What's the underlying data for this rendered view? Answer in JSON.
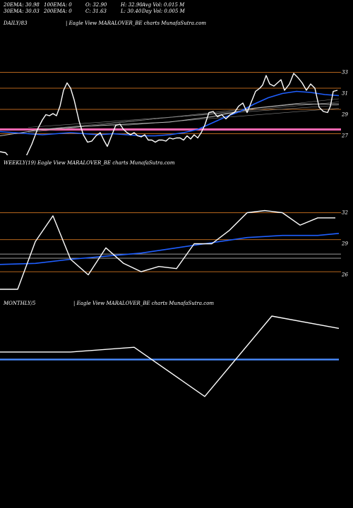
{
  "header": {
    "row1": [
      "20EMA: 30.98",
      "100EMA: 0",
      "O: 32.90",
      "H: 32.90",
      "Avg Vol: 0.015 M"
    ],
    "row2": [
      "30EMA: 30.03",
      "200EMA: 0",
      "C: 31.63",
      "L: 30.40",
      "Day Vol: 0.005 M"
    ]
  },
  "panels": {
    "daily": {
      "label": "DAILY/83",
      "caption": "| Eagle   View  MARALOVER_BE charts MunafaSutra.com"
    },
    "weekly": {
      "label": "WEEKLY(19) Eagle   View  MARALOVER_BE charts MunafaSutra.com"
    },
    "monthly": {
      "label": "MONTHLY/5",
      "caption": "| Eagle   View  MARALOVER_BE charts MunafaSutra.com"
    }
  },
  "colors": {
    "background": "#000000",
    "price": "#ffffff",
    "ema_fast": "#1f5fff",
    "ema_slow": "#bbbbbb",
    "grid": "#b5651d",
    "pink": "#ff69b4",
    "monthly_line": "#4a8cff"
  },
  "chart_data": [
    {
      "type": "line",
      "name": "daily",
      "y_ticks": [
        "33",
        "31",
        "29",
        "27"
      ],
      "ylim": [
        25.5,
        34.3
      ],
      "gridlines": [
        33.0,
        31.5,
        29.5,
        27.2
      ],
      "pink_level": 27.6,
      "price": [
        [
          0,
          25.5
        ],
        [
          8,
          25.4
        ],
        [
          15,
          24.8
        ],
        [
          22,
          24.0
        ],
        [
          30,
          24.2
        ],
        [
          38,
          25.2
        ],
        [
          45,
          26.2
        ],
        [
          53,
          27.6
        ],
        [
          60,
          28.5
        ],
        [
          65,
          29.0
        ],
        [
          70,
          28.9
        ],
        [
          75,
          29.1
        ],
        [
          80,
          28.9
        ],
        [
          85,
          29.8
        ],
        [
          90,
          31.3
        ],
        [
          95,
          32.0
        ],
        [
          100,
          31.5
        ],
        [
          105,
          30.4
        ],
        [
          112,
          28.4
        ],
        [
          118,
          27.1
        ],
        [
          124,
          26.4
        ],
        [
          130,
          26.5
        ],
        [
          136,
          27.0
        ],
        [
          142,
          27.3
        ],
        [
          147,
          26.6
        ],
        [
          152,
          26.0
        ],
        [
          158,
          27.0
        ],
        [
          164,
          28.0
        ],
        [
          170,
          28.1
        ],
        [
          175,
          27.6
        ],
        [
          180,
          27.3
        ],
        [
          185,
          27.1
        ],
        [
          190,
          27.3
        ],
        [
          195,
          27.0
        ],
        [
          200,
          26.9
        ],
        [
          205,
          27.1
        ],
        [
          210,
          26.6
        ],
        [
          215,
          26.6
        ],
        [
          220,
          26.4
        ],
        [
          225,
          26.6
        ],
        [
          230,
          26.6
        ],
        [
          235,
          26.5
        ],
        [
          240,
          26.8
        ],
        [
          245,
          26.7
        ],
        [
          250,
          26.8
        ],
        [
          255,
          26.8
        ],
        [
          260,
          26.6
        ],
        [
          265,
          27.0
        ],
        [
          270,
          26.7
        ],
        [
          275,
          27.1
        ],
        [
          280,
          26.8
        ],
        [
          285,
          27.3
        ],
        [
          290,
          28.0
        ],
        [
          296,
          29.2
        ],
        [
          302,
          29.3
        ],
        [
          308,
          28.8
        ],
        [
          314,
          29.0
        ],
        [
          320,
          28.6
        ],
        [
          326,
          29.0
        ],
        [
          332,
          29.2
        ],
        [
          338,
          29.8
        ],
        [
          344,
          30.1
        ],
        [
          350,
          29.2
        ],
        [
          356,
          30.2
        ],
        [
          362,
          31.2
        ],
        [
          368,
          31.5
        ],
        [
          372,
          31.8
        ],
        [
          377,
          32.7
        ],
        [
          382,
          31.9
        ],
        [
          388,
          31.7
        ],
        [
          393,
          32.0
        ],
        [
          398,
          32.3
        ],
        [
          403,
          31.3
        ],
        [
          410,
          31.9
        ],
        [
          416,
          32.9
        ],
        [
          422,
          32.5
        ],
        [
          428,
          32.0
        ],
        [
          434,
          31.3
        ],
        [
          440,
          31.9
        ],
        [
          446,
          31.5
        ],
        [
          452,
          29.7
        ],
        [
          458,
          29.3
        ],
        [
          464,
          29.2
        ],
        [
          468,
          29.8
        ],
        [
          472,
          31.2
        ],
        [
          478,
          31.3
        ]
      ],
      "ema_fast": [
        [
          0,
          27.4
        ],
        [
          20,
          27.3
        ],
        [
          40,
          27.2
        ],
        [
          60,
          27.1
        ],
        [
          80,
          27.2
        ],
        [
          100,
          27.3
        ],
        [
          120,
          27.2
        ],
        [
          140,
          27.1
        ],
        [
          160,
          27.2
        ],
        [
          180,
          27.1
        ],
        [
          200,
          27.0
        ],
        [
          220,
          27.0
        ],
        [
          240,
          27.1
        ],
        [
          260,
          27.3
        ],
        [
          280,
          27.6
        ],
        [
          300,
          28.2
        ],
        [
          320,
          28.8
        ],
        [
          340,
          29.3
        ],
        [
          360,
          30.0
        ],
        [
          380,
          30.6
        ],
        [
          400,
          31.0
        ],
        [
          420,
          31.2
        ],
        [
          440,
          31.1
        ],
        [
          460,
          30.9
        ],
        [
          480,
          30.8
        ]
      ],
      "ema_slow": [
        [
          0,
          27.0
        ],
        [
          60,
          27.6
        ],
        [
          120,
          27.9
        ],
        [
          180,
          28.1
        ],
        [
          240,
          28.3
        ],
        [
          300,
          28.8
        ],
        [
          360,
          29.6
        ],
        [
          420,
          30.0
        ],
        [
          480,
          30.0
        ]
      ],
      "extra_grey": [
        [
          [
            40,
            27.3
          ],
          [
            480,
            30.5
          ]
        ],
        [
          [
            40,
            27.8
          ],
          [
            480,
            29.9
          ]
        ],
        [
          [
            40,
            27.5
          ],
          [
            480,
            30.2
          ]
        ],
        [
          [
            160,
            27.9
          ],
          [
            480,
            29.6
          ]
        ]
      ]
    },
    {
      "type": "line",
      "name": "weekly",
      "y_ticks": [
        "32",
        "29",
        "26"
      ],
      "ylim": [
        24.6,
        33.6
      ],
      "gridlines": [
        32.0,
        29.4,
        26.3
      ],
      "grey_levels": [
        28.0,
        27.6
      ],
      "price": [
        [
          0,
          24.6
        ],
        [
          25,
          24.6
        ],
        [
          50,
          29.2
        ],
        [
          75,
          31.7
        ],
        [
          100,
          27.5
        ],
        [
          125,
          26.0
        ],
        [
          150,
          28.6
        ],
        [
          175,
          27.1
        ],
        [
          200,
          26.3
        ],
        [
          225,
          26.8
        ],
        [
          250,
          26.6
        ],
        [
          275,
          29.0
        ],
        [
          300,
          29.0
        ],
        [
          325,
          30.3
        ],
        [
          350,
          32.0
        ],
        [
          375,
          32.2
        ],
        [
          400,
          32.0
        ],
        [
          425,
          30.8
        ],
        [
          450,
          31.5
        ],
        [
          475,
          31.5
        ]
      ],
      "ema_fast": [
        [
          0,
          27.0
        ],
        [
          50,
          27.1
        ],
        [
          100,
          27.5
        ],
        [
          150,
          27.8
        ],
        [
          200,
          28.1
        ],
        [
          250,
          28.6
        ],
        [
          300,
          29.1
        ],
        [
          350,
          29.6
        ],
        [
          400,
          29.8
        ],
        [
          450,
          29.8
        ],
        [
          480,
          30.0
        ]
      ]
    },
    {
      "type": "line",
      "name": "monthly",
      "ylim": [
        0,
        1
      ],
      "price": [
        [
          0,
          0.62
        ],
        [
          100,
          0.62
        ],
        [
          190,
          0.67
        ],
        [
          290,
          0.15
        ],
        [
          385,
          1.0
        ],
        [
          480,
          0.87
        ]
      ],
      "ema": [
        [
          0,
          0.54
        ],
        [
          480,
          0.54
        ]
      ]
    }
  ]
}
